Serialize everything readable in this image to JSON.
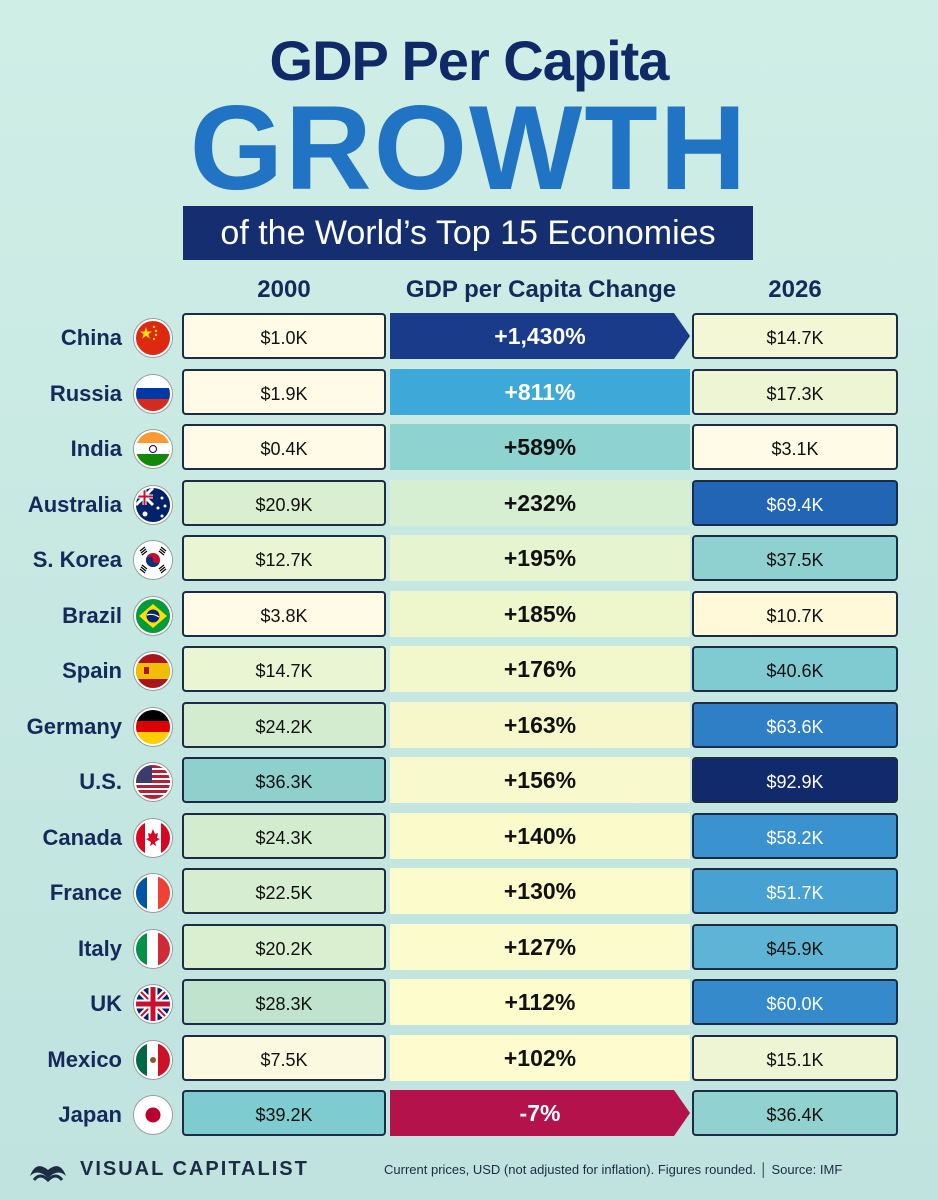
{
  "header": {
    "title_line1": "GDP Per Capita",
    "title_line2": "GROWTH",
    "subtitle": "of the World’s Top 15 Economies"
  },
  "columns": {
    "left": "2000",
    "middle": "GDP per Capita Change",
    "right": "2026"
  },
  "chart_data": {
    "type": "table",
    "title": "GDP Per Capita GROWTH of the World’s Top 15 Economies",
    "columns": [
      "2000",
      "GDP per Capita Change",
      "2026"
    ],
    "rows": [
      {
        "country": "China",
        "flag": "china-flag",
        "v2000": "$1.0K",
        "change": "+1,430%",
        "v2026": "$14.7K",
        "c2000": "#fffbe6",
        "c2026": "#f3f7d6",
        "bar_color": "#1a3b8a",
        "text_color": "#ffffff",
        "arrow": true
      },
      {
        "country": "Russia",
        "flag": "russia-flag",
        "v2000": "$1.9K",
        "change": "+811%",
        "v2026": "$17.3K",
        "c2000": "#fffbe6",
        "c2026": "#eef5d4",
        "bar_color": "#3ea9d8",
        "text_color": "#ffffff",
        "arrow": false
      },
      {
        "country": "India",
        "flag": "india-flag",
        "v2000": "$0.4K",
        "change": "+589%",
        "v2026": "$3.1K",
        "c2000": "#fffbe6",
        "c2026": "#fffbe6",
        "bar_color": "#8fd3d0",
        "text_color": "#111111",
        "arrow": false
      },
      {
        "country": "Australia",
        "flag": "australia-flag",
        "v2000": "$20.9K",
        "change": "+232%",
        "v2026": "$69.4K",
        "c2000": "#d9efcf",
        "c2026": "#2165b4",
        "bar_color": "#d6efd2",
        "text_color": "#111111",
        "arrow": false
      },
      {
        "country": "S. Korea",
        "flag": "south-korea-flag",
        "v2000": "$12.7K",
        "change": "+195%",
        "v2026": "$37.5K",
        "c2000": "#eaf5d3",
        "c2026": "#8fd0d0",
        "bar_color": "#e6f4cf",
        "text_color": "#111111",
        "arrow": false
      },
      {
        "country": "Brazil",
        "flag": "brazil-flag",
        "v2000": "$3.8K",
        "change": "+185%",
        "v2026": "$10.7K",
        "c2000": "#fffbe6",
        "c2026": "#fff8d9",
        "bar_color": "#eef6cc",
        "text_color": "#111111",
        "arrow": false
      },
      {
        "country": "Spain",
        "flag": "spain-flag",
        "v2000": "$14.7K",
        "change": "+176%",
        "v2026": "$40.6K",
        "c2000": "#eaf5d3",
        "c2026": "#7fcbd1",
        "bar_color": "#f2f7cc",
        "text_color": "#111111",
        "arrow": false
      },
      {
        "country": "Germany",
        "flag": "germany-flag",
        "v2000": "$24.2K",
        "change": "+163%",
        "v2026": "$63.6K",
        "c2000": "#d3ecd0",
        "c2026": "#2e7fc6",
        "bar_color": "#f6f8cc",
        "text_color": "#111111",
        "arrow": false
      },
      {
        "country": "U.S.",
        "flag": "us-flag",
        "v2000": "$36.3K",
        "change": "+156%",
        "v2026": "$92.9K",
        "c2000": "#8fd0cd",
        "c2026": "#102a6b",
        "bar_color": "#f8f9cc",
        "text_color": "#111111",
        "arrow": false
      },
      {
        "country": "Canada",
        "flag": "canada-flag",
        "v2000": "$24.3K",
        "change": "+140%",
        "v2026": "$58.2K",
        "c2000": "#d3ecd0",
        "c2026": "#3a93cf",
        "bar_color": "#fafacb",
        "text_color": "#111111",
        "arrow": false
      },
      {
        "country": "France",
        "flag": "france-flag",
        "v2000": "$22.5K",
        "change": "+130%",
        "v2026": "$51.7K",
        "c2000": "#d6eecf",
        "c2026": "#47a2d3",
        "bar_color": "#fbfbcc",
        "text_color": "#111111",
        "arrow": false
      },
      {
        "country": "Italy",
        "flag": "italy-flag",
        "v2000": "$20.2K",
        "change": "+127%",
        "v2026": "$45.9K",
        "c2000": "#d9efcf",
        "c2026": "#5eb4d4",
        "bar_color": "#fcfbcd",
        "text_color": "#111111",
        "arrow": false
      },
      {
        "country": "UK",
        "flag": "uk-flag",
        "v2000": "$28.3K",
        "change": "+112%",
        "v2026": "$60.0K",
        "c2000": "#bfe3cc",
        "c2026": "#348acb",
        "bar_color": "#fdfccd",
        "text_color": "#111111",
        "arrow": false
      },
      {
        "country": "Mexico",
        "flag": "mexico-flag",
        "v2000": "$7.5K",
        "change": "+102%",
        "v2026": "$15.1K",
        "c2000": "#fbf9df",
        "c2026": "#eef5d4",
        "bar_color": "#fefcce",
        "text_color": "#111111",
        "arrow": false
      },
      {
        "country": "Japan",
        "flag": "japan-flag",
        "v2000": "$39.2K",
        "change": "-7%",
        "v2026": "$36.4K",
        "c2000": "#7ecbd0",
        "c2026": "#91d1cf",
        "bar_color": "#b3124a",
        "text_color": "#ffffff",
        "arrow": true
      }
    ]
  },
  "footer": {
    "brand": "VISUAL CAPITALIST",
    "note": "Current prices, USD (not adjusted for inflation). Figures rounded. │ Source: IMF"
  }
}
